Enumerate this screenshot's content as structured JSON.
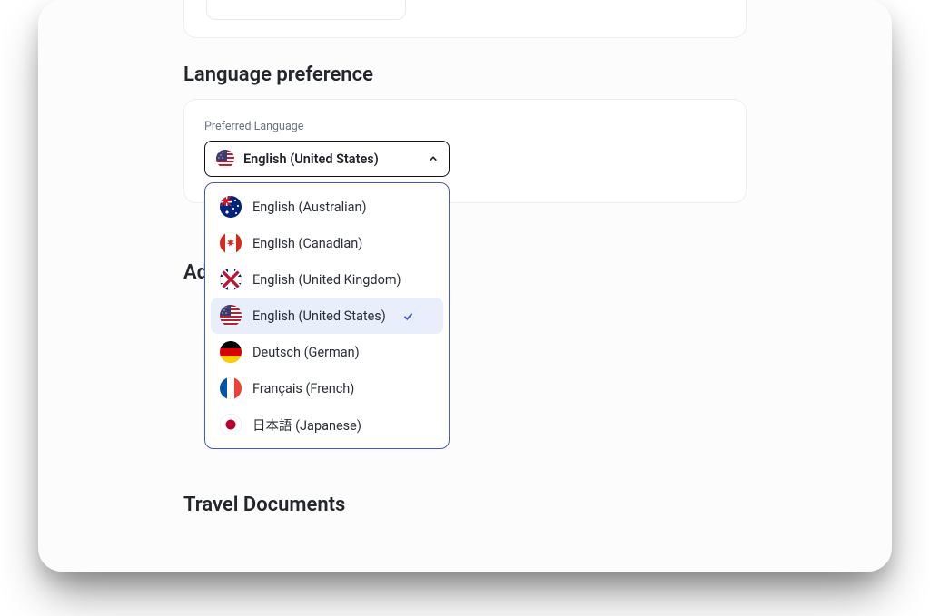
{
  "sections": {
    "language": {
      "title": "Language preference",
      "field_label": "Preferred Language",
      "selected_label": "English (United States)",
      "selected_value": "en-US",
      "options": [
        {
          "value": "en-AU",
          "label": "English (Australian)",
          "flag": "au",
          "selected": false
        },
        {
          "value": "en-CA",
          "label": "English (Canadian)",
          "flag": "ca",
          "selected": false
        },
        {
          "value": "en-GB",
          "label": "English (United Kingdom)",
          "flag": "uk",
          "selected": false
        },
        {
          "value": "en-US",
          "label": "English (United States)",
          "flag": "us",
          "selected": true
        },
        {
          "value": "de-DE",
          "label": "Deutsch (German)",
          "flag": "de",
          "selected": false
        },
        {
          "value": "fr-FR",
          "label": "Français (French)",
          "flag": "fr",
          "selected": false
        },
        {
          "value": "ja-JP",
          "label": "日本語 (Japanese)",
          "flag": "jp",
          "selected": false
        }
      ]
    },
    "partial_above": {
      "visible_heading_fragment": "Add"
    },
    "travel_docs": {
      "title": "Travel Documents"
    }
  },
  "style": {
    "page_bg": "#fcfcfd",
    "card_border": "#eceef2",
    "listbox_border": "#4355d6",
    "selected_bg": "#e9eefb",
    "text_primary": "#23262b",
    "text_muted": "#6b7280",
    "trigger_border": "#111111",
    "border_radius_card": 14,
    "border_radius_list": 10,
    "font_family": "-apple-system, BlinkMacSystemFont, Segoe UI, Roboto"
  }
}
